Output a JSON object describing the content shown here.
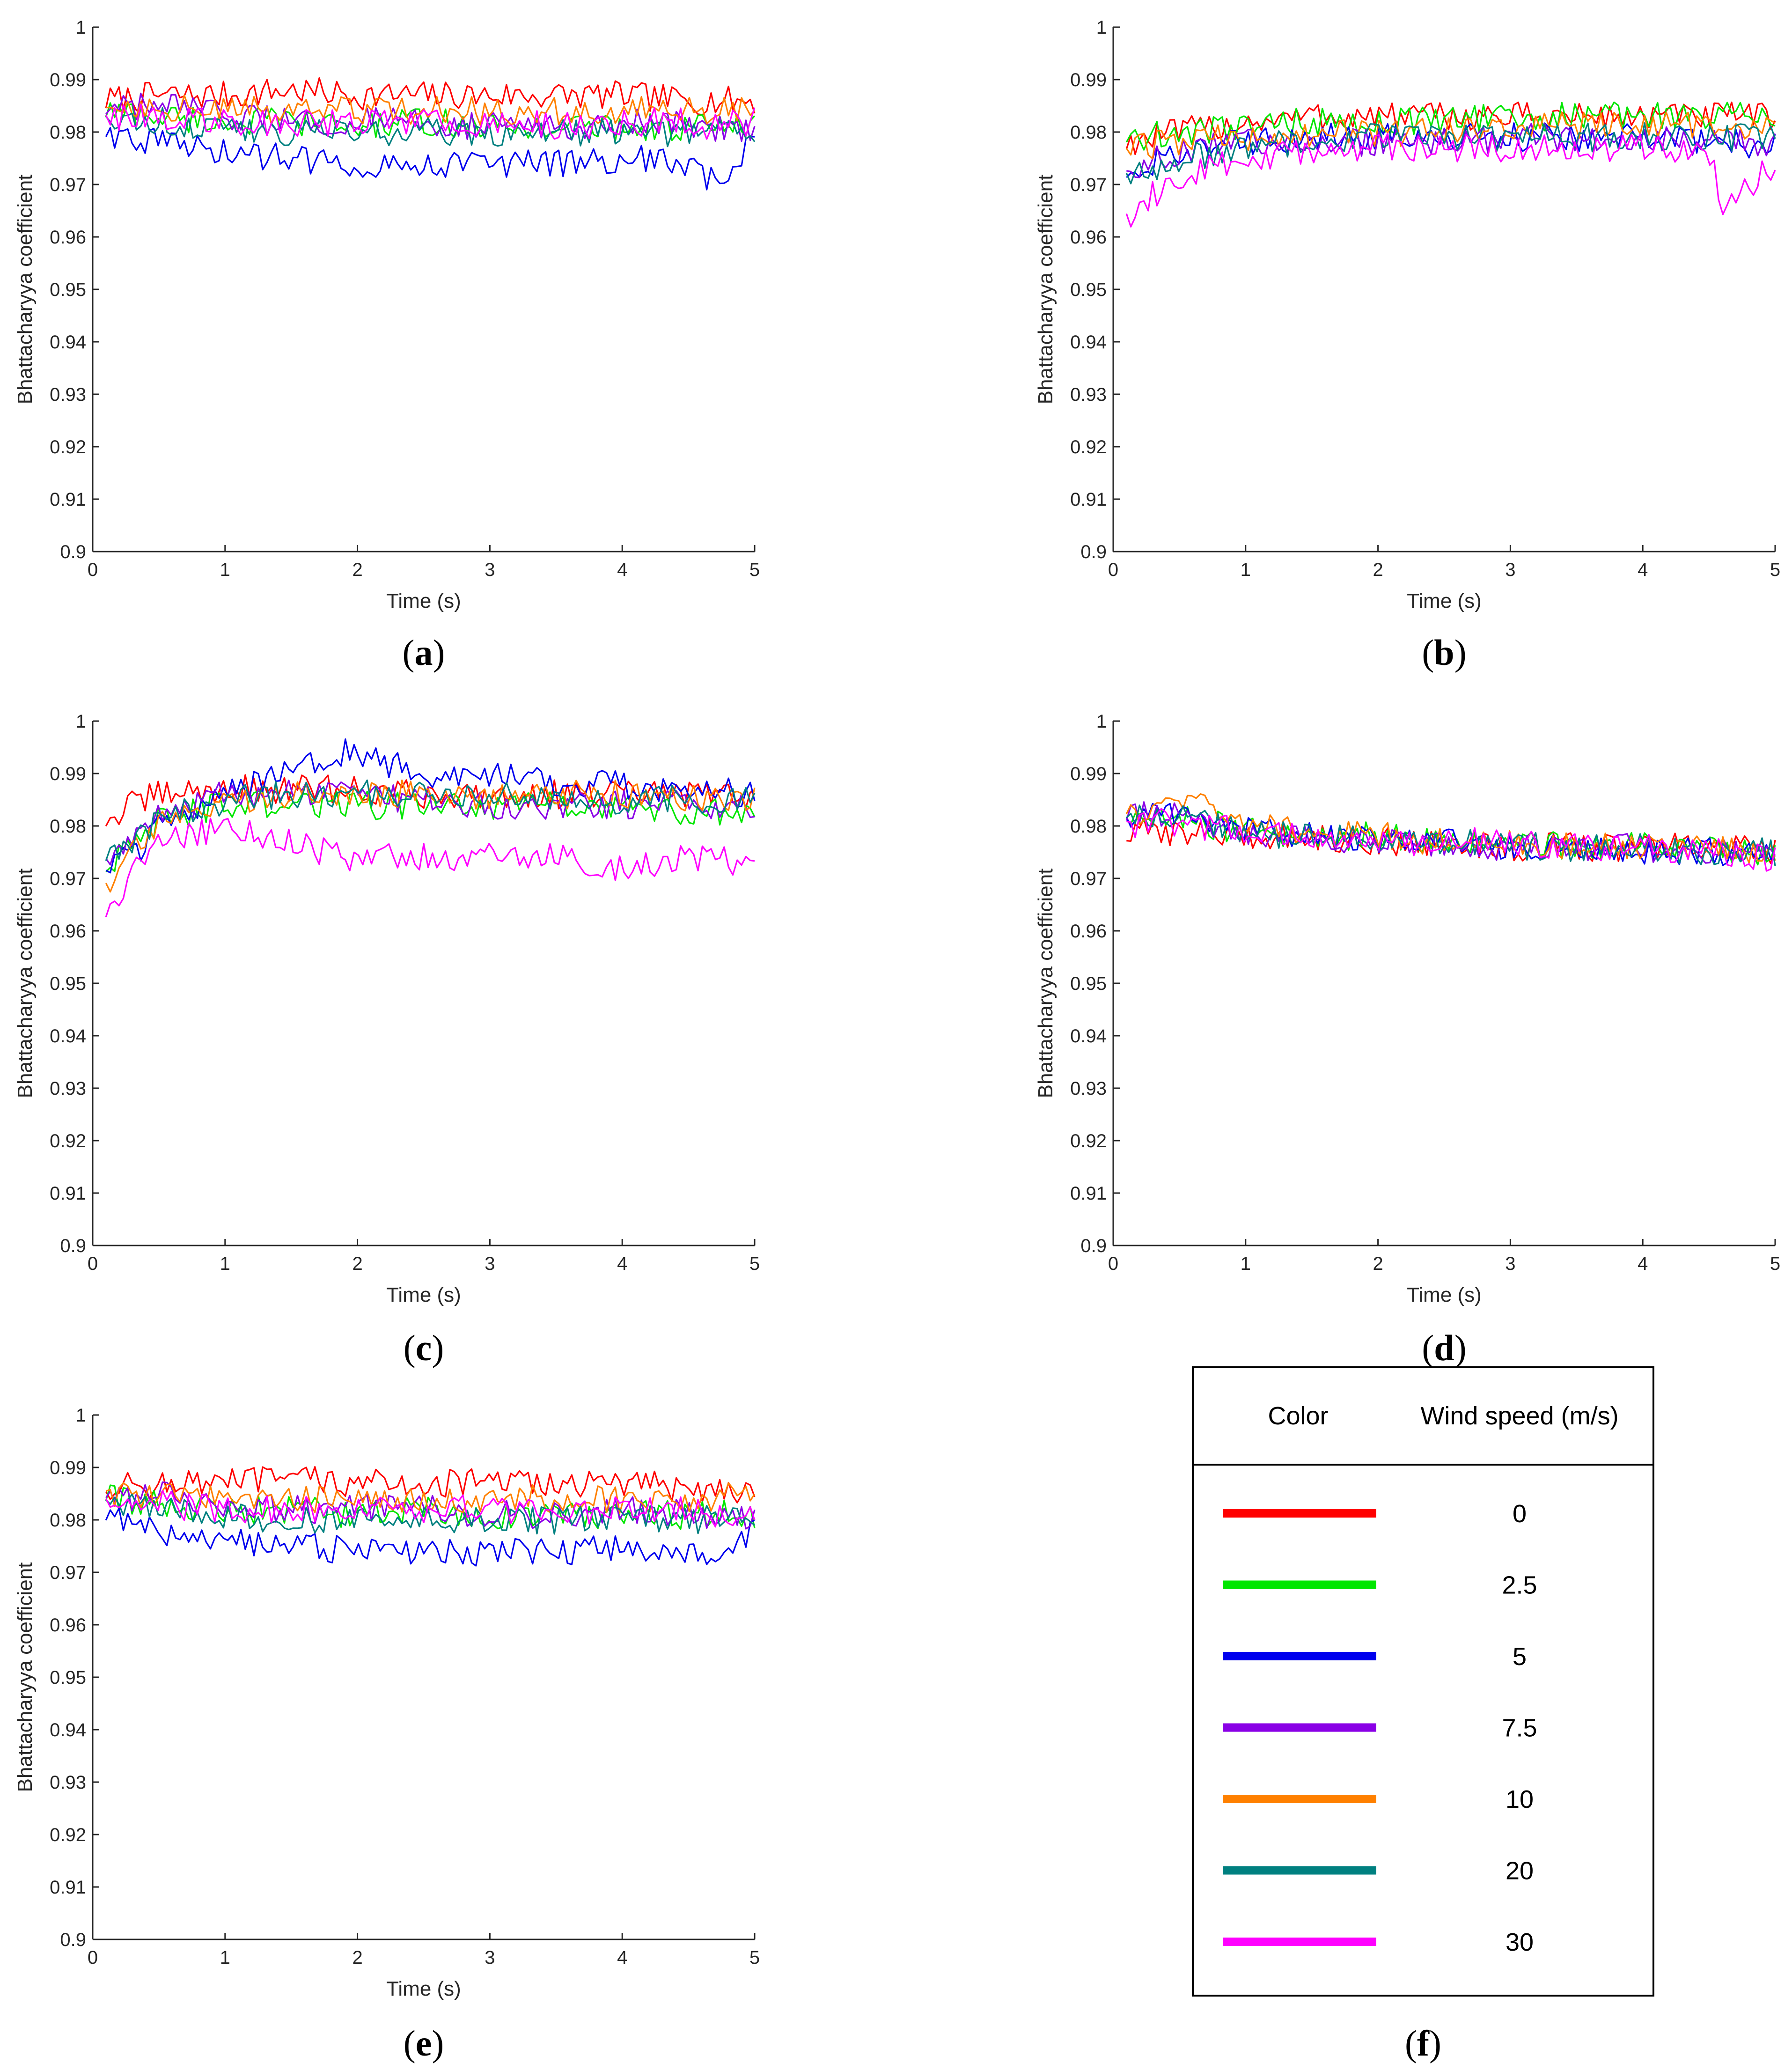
{
  "figure": {
    "panels": [
      {
        "label": "a"
      },
      {
        "label": "b"
      },
      {
        "label": "c"
      },
      {
        "label": "d"
      },
      {
        "label": "e"
      }
    ],
    "legend": {
      "label": "f",
      "header_color": "Color",
      "header_speed": "Wind speed (m/s)",
      "entries": [
        {
          "speed": "0",
          "color": "#ff0000"
        },
        {
          "speed": "2.5",
          "color": "#00e600"
        },
        {
          "speed": "5",
          "color": "#0000ee"
        },
        {
          "speed": "7.5",
          "color": "#8a00e6"
        },
        {
          "speed": "10",
          "color": "#ff8000"
        },
        {
          "speed": "20",
          "color": "#008080"
        },
        {
          "speed": "30",
          "color": "#ff00ff"
        }
      ]
    }
  },
  "chart_data": [
    {
      "panel": "a",
      "type": "line",
      "xlabel": "Time (s)",
      "ylabel": "Bhattacharyya coefficient",
      "xlim": [
        0,
        5
      ],
      "ylim": [
        0.9,
        1.0
      ],
      "xticks": [
        "0",
        "1",
        "2",
        "3",
        "4",
        "5"
      ],
      "yticks": [
        "0.9",
        "0.91",
        "0.92",
        "0.93",
        "0.94",
        "0.95",
        "0.96",
        "0.97",
        "0.98",
        "0.99",
        "1"
      ],
      "x": [
        0.1,
        0.5,
        1.0,
        1.5,
        2.0,
        2.5,
        3.0,
        3.5,
        4.0,
        4.5,
        4.7,
        5.0
      ],
      "series": [
        {
          "color": "#ff0000",
          "values": [
            0.986,
            0.987,
            0.987,
            0.988,
            0.987,
            0.987,
            0.987,
            0.987,
            0.987,
            0.986,
            0.986,
            0.986
          ]
        },
        {
          "color": "#00e600",
          "values": [
            0.984,
            0.983,
            0.982,
            0.982,
            0.981,
            0.982,
            0.981,
            0.981,
            0.981,
            0.981,
            0.981,
            0.981
          ]
        },
        {
          "color": "#0000ee",
          "values": [
            0.98,
            0.978,
            0.976,
            0.975,
            0.974,
            0.974,
            0.974,
            0.974,
            0.975,
            0.974,
            0.97,
            0.978
          ]
        },
        {
          "color": "#8a00e6",
          "values": [
            0.984,
            0.985,
            0.983,
            0.982,
            0.982,
            0.982,
            0.981,
            0.981,
            0.982,
            0.981,
            0.981,
            0.981
          ]
        },
        {
          "color": "#ff8000",
          "values": [
            0.985,
            0.985,
            0.984,
            0.984,
            0.984,
            0.984,
            0.984,
            0.984,
            0.984,
            0.984,
            0.984,
            0.985
          ]
        },
        {
          "color": "#008080",
          "values": [
            0.983,
            0.982,
            0.981,
            0.98,
            0.98,
            0.98,
            0.98,
            0.98,
            0.98,
            0.98,
            0.98,
            0.98
          ]
        },
        {
          "color": "#ff00ff",
          "values": [
            0.983,
            0.983,
            0.982,
            0.982,
            0.982,
            0.982,
            0.982,
            0.981,
            0.982,
            0.982,
            0.981,
            0.982
          ]
        }
      ]
    },
    {
      "panel": "b",
      "type": "line",
      "xlabel": "Time (s)",
      "ylabel": "Bhattacharyya coefficient",
      "xlim": [
        0,
        5
      ],
      "ylim": [
        0.9,
        1.0
      ],
      "xticks": [
        "0",
        "1",
        "2",
        "3",
        "4",
        "5"
      ],
      "yticks": [
        "0.9",
        "0.91",
        "0.92",
        "0.93",
        "0.94",
        "0.95",
        "0.96",
        "0.97",
        "0.98",
        "0.99",
        "1"
      ],
      "x": [
        0.1,
        0.5,
        1.0,
        1.5,
        2.0,
        2.5,
        3.0,
        3.5,
        4.0,
        4.5,
        4.6,
        5.0
      ],
      "series": [
        {
          "color": "#ff0000",
          "values": [
            0.978,
            0.98,
            0.982,
            0.983,
            0.983,
            0.983,
            0.983,
            0.983,
            0.983,
            0.983,
            0.983,
            0.983
          ]
        },
        {
          "color": "#00e600",
          "values": [
            0.979,
            0.98,
            0.981,
            0.982,
            0.982,
            0.982,
            0.983,
            0.983,
            0.983,
            0.983,
            0.983,
            0.983
          ]
        },
        {
          "color": "#0000ee",
          "values": [
            0.972,
            0.976,
            0.978,
            0.979,
            0.979,
            0.979,
            0.979,
            0.979,
            0.979,
            0.978,
            0.978,
            0.977
          ]
        },
        {
          "color": "#8a00e6",
          "values": [
            0.973,
            0.976,
            0.978,
            0.978,
            0.978,
            0.978,
            0.979,
            0.979,
            0.979,
            0.978,
            0.978,
            0.978
          ]
        },
        {
          "color": "#ff8000",
          "values": [
            0.977,
            0.978,
            0.979,
            0.98,
            0.98,
            0.98,
            0.981,
            0.981,
            0.981,
            0.981,
            0.981,
            0.981
          ]
        },
        {
          "color": "#008080",
          "values": [
            0.972,
            0.975,
            0.977,
            0.978,
            0.979,
            0.979,
            0.979,
            0.979,
            0.979,
            0.979,
            0.979,
            0.979
          ]
        },
        {
          "color": "#ff00ff",
          "values": [
            0.964,
            0.972,
            0.975,
            0.976,
            0.977,
            0.977,
            0.977,
            0.977,
            0.977,
            0.977,
            0.966,
            0.974
          ]
        }
      ]
    },
    {
      "panel": "c",
      "type": "line",
      "xlabel": "Time (s)",
      "ylabel": "Bhattacharyya coefficient",
      "xlim": [
        0,
        5
      ],
      "ylim": [
        0.9,
        1.0
      ],
      "xticks": [
        "0",
        "1",
        "2",
        "3",
        "4",
        "5"
      ],
      "yticks": [
        "0.9",
        "0.91",
        "0.92",
        "0.93",
        "0.94",
        "0.95",
        "0.96",
        "0.97",
        "0.98",
        "0.99",
        "1"
      ],
      "x": [
        0.1,
        0.3,
        0.5,
        1.0,
        1.5,
        1.9,
        2.5,
        3.0,
        3.5,
        4.0,
        4.5,
        5.0
      ],
      "series": [
        {
          "color": "#ff0000",
          "values": [
            0.981,
            0.984,
            0.986,
            0.987,
            0.987,
            0.987,
            0.986,
            0.986,
            0.986,
            0.986,
            0.986,
            0.986
          ]
        },
        {
          "color": "#00e600",
          "values": [
            0.972,
            0.976,
            0.981,
            0.984,
            0.984,
            0.984,
            0.984,
            0.984,
            0.984,
            0.983,
            0.983,
            0.982
          ]
        },
        {
          "color": "#0000ee",
          "values": [
            0.972,
            0.974,
            0.98,
            0.986,
            0.99,
            0.994,
            0.99,
            0.99,
            0.988,
            0.988,
            0.987,
            0.986
          ]
        },
        {
          "color": "#8a00e6",
          "values": [
            0.974,
            0.977,
            0.982,
            0.986,
            0.986,
            0.986,
            0.985,
            0.984,
            0.984,
            0.984,
            0.984,
            0.984
          ]
        },
        {
          "color": "#ff8000",
          "values": [
            0.969,
            0.975,
            0.98,
            0.985,
            0.986,
            0.986,
            0.986,
            0.986,
            0.986,
            0.986,
            0.985,
            0.985
          ]
        },
        {
          "color": "#008080",
          "values": [
            0.973,
            0.976,
            0.981,
            0.985,
            0.986,
            0.986,
            0.986,
            0.986,
            0.985,
            0.985,
            0.985,
            0.985
          ]
        },
        {
          "color": "#ff00ff",
          "values": [
            0.962,
            0.971,
            0.977,
            0.98,
            0.977,
            0.974,
            0.974,
            0.974,
            0.974,
            0.972,
            0.974,
            0.973
          ]
        }
      ]
    },
    {
      "panel": "d",
      "type": "line",
      "xlabel": "Time (s)",
      "ylabel": "Bhattacharyya coefficient",
      "xlim": [
        0,
        5
      ],
      "ylim": [
        0.9,
        1.0
      ],
      "xticks": [
        "0",
        "1",
        "2",
        "3",
        "4",
        "5"
      ],
      "yticks": [
        "0.9",
        "0.91",
        "0.92",
        "0.93",
        "0.94",
        "0.95",
        "0.96",
        "0.97",
        "0.98",
        "0.99",
        "1"
      ],
      "x": [
        0.1,
        0.3,
        0.6,
        1.0,
        1.5,
        2.0,
        2.5,
        3.0,
        3.5,
        4.0,
        4.5,
        5.0
      ],
      "series": [
        {
          "color": "#ff0000",
          "values": [
            0.978,
            0.979,
            0.979,
            0.978,
            0.978,
            0.977,
            0.977,
            0.976,
            0.976,
            0.976,
            0.976,
            0.975
          ]
        },
        {
          "color": "#00e600",
          "values": [
            0.982,
            0.982,
            0.981,
            0.979,
            0.978,
            0.978,
            0.977,
            0.977,
            0.976,
            0.976,
            0.976,
            0.975
          ]
        },
        {
          "color": "#0000ee",
          "values": [
            0.982,
            0.983,
            0.981,
            0.979,
            0.978,
            0.977,
            0.977,
            0.976,
            0.976,
            0.975,
            0.975,
            0.974
          ]
        },
        {
          "color": "#8a00e6",
          "values": [
            0.981,
            0.983,
            0.981,
            0.979,
            0.978,
            0.977,
            0.977,
            0.976,
            0.976,
            0.976,
            0.975,
            0.975
          ]
        },
        {
          "color": "#ff8000",
          "values": [
            0.982,
            0.983,
            0.985,
            0.981,
            0.979,
            0.978,
            0.977,
            0.977,
            0.976,
            0.976,
            0.976,
            0.975
          ]
        },
        {
          "color": "#008080",
          "values": [
            0.981,
            0.982,
            0.981,
            0.979,
            0.978,
            0.977,
            0.977,
            0.976,
            0.976,
            0.976,
            0.975,
            0.975
          ]
        },
        {
          "color": "#ff00ff",
          "values": [
            0.98,
            0.981,
            0.98,
            0.979,
            0.978,
            0.977,
            0.977,
            0.977,
            0.976,
            0.976,
            0.975,
            0.974
          ]
        }
      ]
    },
    {
      "panel": "e",
      "type": "line",
      "xlabel": "Time (s)",
      "ylabel": "Bhattacharyya coefficient",
      "xlim": [
        0,
        5
      ],
      "ylim": [
        0.9,
        1.0
      ],
      "xticks": [
        "0",
        "1",
        "2",
        "3",
        "4",
        "5"
      ],
      "yticks": [
        "0.9",
        "0.91",
        "0.92",
        "0.93",
        "0.94",
        "0.95",
        "0.96",
        "0.97",
        "0.98",
        "0.99",
        "1"
      ],
      "x": [
        0.1,
        0.5,
        1.0,
        1.5,
        2.0,
        2.5,
        3.0,
        3.5,
        4.0,
        4.5,
        4.7,
        5.0
      ],
      "series": [
        {
          "color": "#ff0000",
          "values": [
            0.986,
            0.987,
            0.987,
            0.988,
            0.987,
            0.987,
            0.987,
            0.987,
            0.987,
            0.986,
            0.986,
            0.986
          ]
        },
        {
          "color": "#00e600",
          "values": [
            0.984,
            0.983,
            0.982,
            0.982,
            0.981,
            0.982,
            0.981,
            0.981,
            0.981,
            0.981,
            0.981,
            0.981
          ]
        },
        {
          "color": "#0000ee",
          "values": [
            0.98,
            0.978,
            0.976,
            0.975,
            0.974,
            0.974,
            0.974,
            0.974,
            0.975,
            0.974,
            0.97,
            0.978
          ]
        },
        {
          "color": "#8a00e6",
          "values": [
            0.984,
            0.985,
            0.983,
            0.982,
            0.982,
            0.982,
            0.981,
            0.981,
            0.982,
            0.981,
            0.981,
            0.981
          ]
        },
        {
          "color": "#ff8000",
          "values": [
            0.985,
            0.985,
            0.984,
            0.984,
            0.984,
            0.984,
            0.984,
            0.984,
            0.984,
            0.984,
            0.984,
            0.985
          ]
        },
        {
          "color": "#008080",
          "values": [
            0.983,
            0.982,
            0.981,
            0.98,
            0.98,
            0.98,
            0.98,
            0.98,
            0.98,
            0.98,
            0.98,
            0.98
          ]
        },
        {
          "color": "#ff00ff",
          "values": [
            0.983,
            0.983,
            0.982,
            0.982,
            0.982,
            0.982,
            0.982,
            0.981,
            0.982,
            0.982,
            0.981,
            0.982
          ]
        }
      ]
    }
  ]
}
